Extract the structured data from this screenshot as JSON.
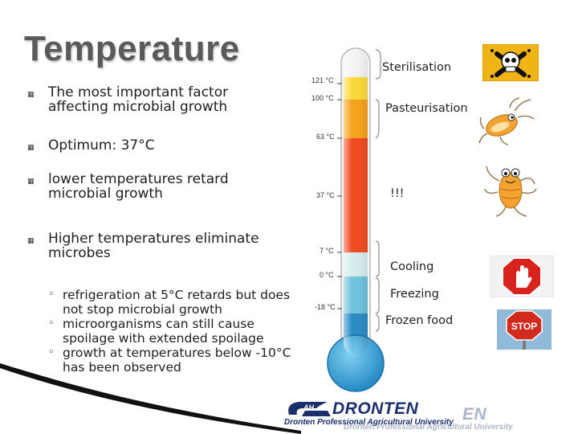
{
  "slide": {
    "title": "Temperature",
    "bullets": [
      "The most important factor affecting microbial growth",
      "Optimum: 37°C",
      "lower temperatures retard microbial growth",
      "Higher temperatures eliminate microbes"
    ],
    "sub_bullets": [
      "refrigeration at 5°C retards but does not stop microbial growth",
      "microorganisms can still cause spoilage with extended spoilage",
      "growth at temperatures below -10°C has been observed"
    ],
    "bullet_icon": "square-bullet-icon",
    "sub_bullet_icon": "circle-bullet-icon"
  },
  "thermometer": {
    "scale_labels": [
      "121 °C",
      "100 °C",
      "63 °C",
      "37 °C",
      "7 °C",
      "0 °C",
      "-18 °C"
    ],
    "zones": [
      "Sterilisation",
      "Pasteurisation",
      "!!!",
      "Cooling",
      "Freezing",
      "Frozen food"
    ],
    "colors": {
      "sterilisation": "#fbd93a",
      "pasteurisation": "#f6a21c",
      "danger": "#f04a1f",
      "cooling": "#d7ecee",
      "freezing": "#6fc3dc",
      "frozen": "#2a8cc4"
    }
  },
  "pictures": {
    "skull": "skull-crossbones-icon",
    "bug_small": "bacteria-cartoon-icon",
    "bug_large": "bacteria-cartoon-icon",
    "hand_stop": "hand-stop-sign-icon",
    "stop_sign": "stop-sign-icon",
    "stop_text": "STOP"
  },
  "logo": {
    "brand": "DRONTEN",
    "tagline": "Dronten Professional Agricultural University",
    "ghost_brand": "EN",
    "ghost_tagline": "Dronten Professional Agricultural University"
  }
}
